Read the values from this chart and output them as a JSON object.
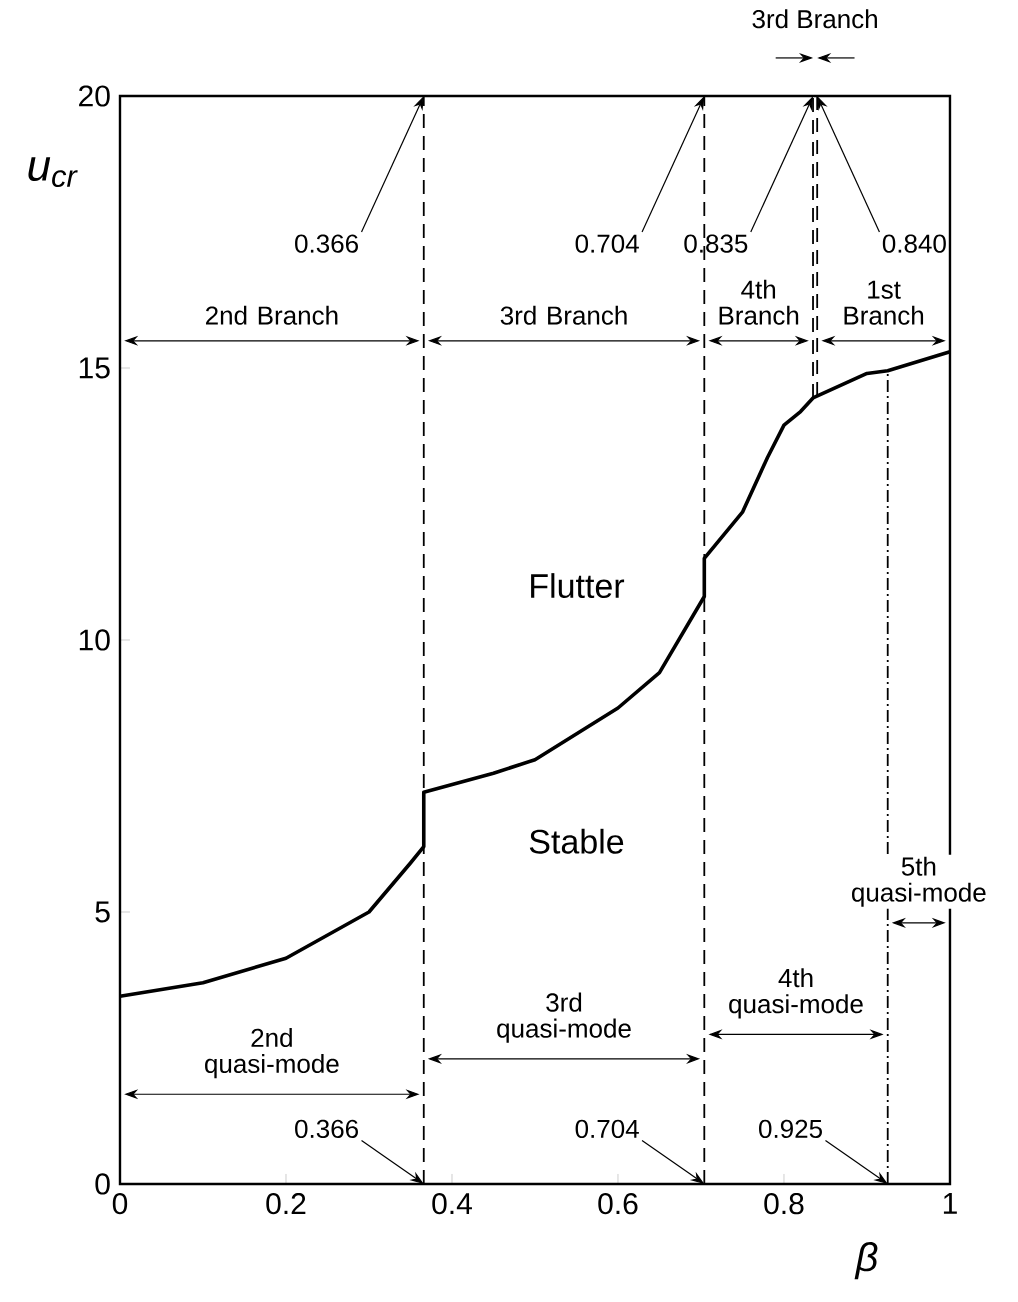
{
  "chart_data": {
    "type": "line",
    "xlabel": "β",
    "ylabel": "u$_{cr}$",
    "xlim": [
      0,
      1
    ],
    "ylim": [
      0,
      20
    ],
    "xticks": [
      0,
      0.2,
      0.4,
      0.6,
      0.8,
      1
    ],
    "yticks": [
      0,
      5,
      10,
      15,
      20
    ],
    "series": [
      {
        "color": "#000000",
        "x": [
          0,
          0.1,
          0.2,
          0.3,
          0.35,
          0.366,
          0.366,
          0.45,
          0.5,
          0.6,
          0.65,
          0.704,
          0.704,
          0.75,
          0.78,
          0.8,
          0.82,
          0.835,
          0.9,
          0.925,
          1
        ],
        "values": [
          3.45,
          3.7,
          4.15,
          5.0,
          5.9,
          6.2,
          7.2,
          7.55,
          7.8,
          8.75,
          9.4,
          10.8,
          11.5,
          12.35,
          13.35,
          13.95,
          14.2,
          14.45,
          14.9,
          14.95,
          15.3
        ]
      }
    ],
    "ref_lines": [
      {
        "axis": "x",
        "value": 0.366,
        "color": "#000000",
        "line_style": "dashed"
      },
      {
        "axis": "x",
        "value": 0.704,
        "color": "#000000",
        "line_style": "dashed"
      },
      {
        "axis": "x",
        "value": 0.835,
        "color": "#000000",
        "line_style": "dashed"
      },
      {
        "axis": "x",
        "value": 0.84,
        "color": "#000000",
        "line_style": "dashed"
      },
      {
        "axis": "x",
        "value": 0.925,
        "color": "#000000",
        "line_style": "dotted"
      }
    ],
    "annotations": [
      "Flutter",
      "Stable",
      {
        "text": "0.366",
        "x": 0.366,
        "y": 20
      },
      {
        "text": "0.704",
        "x": 0.704,
        "y": 20
      },
      {
        "text": "0.835",
        "x": 0.835,
        "y": 20
      },
      {
        "text": "0.840",
        "x": 0.84,
        "y": 20
      },
      {
        "text": "0.366",
        "x": 0.366,
        "y": 0
      },
      {
        "text": "0.704",
        "x": 0.704,
        "y": 0
      },
      {
        "text": "0.925",
        "x": 0.925,
        "y": 0
      },
      "2nd Branch",
      "3rd Branch",
      "4th Branch",
      "3rd Branch",
      "1st Branch",
      "2nd quasi-mode",
      "3rd quasi-mode",
      "4th quasi-mode",
      "5th quasi-mode"
    ]
  }
}
